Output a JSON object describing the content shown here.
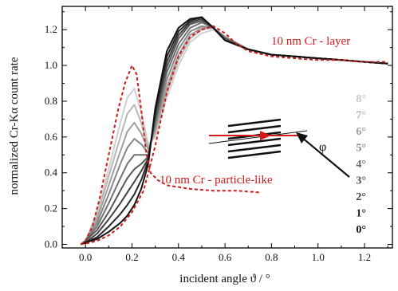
{
  "chart_data": {
    "type": "line",
    "title": "",
    "xlabel": "incident angle ϑ / °",
    "ylabel": "normalized Cr-Kα count rate",
    "xlim": [
      -0.1,
      1.32
    ],
    "ylim": [
      -0.02,
      1.33
    ],
    "xticks": [
      "0.0",
      "0.2",
      "0.4",
      "0.6",
      "0.8",
      "1.0",
      "1.2"
    ],
    "yticks": [
      "0.0",
      "0.2",
      "0.4",
      "0.6",
      "0.8",
      "1.0",
      "1.2"
    ],
    "grid": false,
    "measured_series": [
      {
        "label": "8°",
        "color": "#cfcfcf",
        "points": [
          [
            -0.02,
            0
          ],
          [
            0.0,
            0.02
          ],
          [
            0.05,
            0.18
          ],
          [
            0.1,
            0.42
          ],
          [
            0.15,
            0.68
          ],
          [
            0.18,
            0.82
          ],
          [
            0.21,
            0.87
          ],
          [
            0.24,
            0.74
          ],
          [
            0.27,
            0.56
          ],
          [
            0.3,
            0.6
          ],
          [
            0.35,
            0.82
          ],
          [
            0.4,
            1.0
          ],
          [
            0.45,
            1.13
          ],
          [
            0.5,
            1.18
          ],
          [
            0.55,
            1.2
          ],
          [
            0.6,
            1.16
          ],
          [
            0.7,
            1.09
          ],
          [
            0.8,
            1.06
          ],
          [
            0.9,
            1.05
          ],
          [
            1.0,
            1.04
          ],
          [
            1.1,
            1.03
          ],
          [
            1.2,
            1.02
          ],
          [
            1.3,
            1.01
          ]
        ]
      },
      {
        "label": "7°",
        "color": "#b8b8b8",
        "points": [
          [
            -0.02,
            0
          ],
          [
            0.0,
            0.02
          ],
          [
            0.05,
            0.16
          ],
          [
            0.1,
            0.38
          ],
          [
            0.15,
            0.6
          ],
          [
            0.18,
            0.73
          ],
          [
            0.21,
            0.78
          ],
          [
            0.24,
            0.68
          ],
          [
            0.27,
            0.54
          ],
          [
            0.3,
            0.62
          ],
          [
            0.35,
            0.85
          ],
          [
            0.4,
            1.03
          ],
          [
            0.45,
            1.15
          ],
          [
            0.5,
            1.2
          ],
          [
            0.55,
            1.21
          ],
          [
            0.6,
            1.16
          ],
          [
            0.7,
            1.09
          ],
          [
            0.8,
            1.06
          ],
          [
            0.9,
            1.05
          ],
          [
            1.0,
            1.04
          ],
          [
            1.1,
            1.03
          ],
          [
            1.2,
            1.02
          ],
          [
            1.3,
            1.01
          ]
        ]
      },
      {
        "label": "6°",
        "color": "#a0a0a0",
        "points": [
          [
            -0.02,
            0
          ],
          [
            0.0,
            0.02
          ],
          [
            0.05,
            0.14
          ],
          [
            0.1,
            0.33
          ],
          [
            0.15,
            0.52
          ],
          [
            0.18,
            0.63
          ],
          [
            0.21,
            0.68
          ],
          [
            0.24,
            0.62
          ],
          [
            0.27,
            0.53
          ],
          [
            0.3,
            0.64
          ],
          [
            0.35,
            0.88
          ],
          [
            0.4,
            1.06
          ],
          [
            0.45,
            1.17
          ],
          [
            0.5,
            1.21
          ],
          [
            0.55,
            1.21
          ],
          [
            0.6,
            1.16
          ],
          [
            0.7,
            1.09
          ],
          [
            0.8,
            1.06
          ],
          [
            0.9,
            1.05
          ],
          [
            1.0,
            1.04
          ],
          [
            1.1,
            1.03
          ],
          [
            1.2,
            1.02
          ],
          [
            1.3,
            1.01
          ]
        ]
      },
      {
        "label": "5°",
        "color": "#888888",
        "points": [
          [
            -0.02,
            0
          ],
          [
            0.0,
            0.02
          ],
          [
            0.05,
            0.12
          ],
          [
            0.1,
            0.28
          ],
          [
            0.15,
            0.45
          ],
          [
            0.18,
            0.54
          ],
          [
            0.21,
            0.59
          ],
          [
            0.24,
            0.56
          ],
          [
            0.27,
            0.51
          ],
          [
            0.3,
            0.66
          ],
          [
            0.35,
            0.92
          ],
          [
            0.4,
            1.09
          ],
          [
            0.45,
            1.19
          ],
          [
            0.5,
            1.22
          ],
          [
            0.55,
            1.21
          ],
          [
            0.6,
            1.16
          ],
          [
            0.7,
            1.09
          ],
          [
            0.8,
            1.06
          ],
          [
            0.9,
            1.05
          ],
          [
            1.0,
            1.04
          ],
          [
            1.1,
            1.03
          ],
          [
            1.2,
            1.02
          ],
          [
            1.3,
            1.01
          ]
        ]
      },
      {
        "label": "4°",
        "color": "#707070",
        "points": [
          [
            -0.02,
            0
          ],
          [
            0.0,
            0.02
          ],
          [
            0.05,
            0.1
          ],
          [
            0.1,
            0.23
          ],
          [
            0.15,
            0.37
          ],
          [
            0.18,
            0.45
          ],
          [
            0.21,
            0.5
          ],
          [
            0.24,
            0.5
          ],
          [
            0.27,
            0.5
          ],
          [
            0.3,
            0.68
          ],
          [
            0.35,
            0.96
          ],
          [
            0.4,
            1.12
          ],
          [
            0.45,
            1.21
          ],
          [
            0.5,
            1.24
          ],
          [
            0.55,
            1.21
          ],
          [
            0.6,
            1.15
          ],
          [
            0.7,
            1.09
          ],
          [
            0.8,
            1.06
          ],
          [
            0.9,
            1.05
          ],
          [
            1.0,
            1.04
          ],
          [
            1.1,
            1.03
          ],
          [
            1.2,
            1.02
          ],
          [
            1.3,
            1.01
          ]
        ]
      },
      {
        "label": "3°",
        "color": "#585858",
        "points": [
          [
            -0.02,
            0
          ],
          [
            0.0,
            0.02
          ],
          [
            0.05,
            0.08
          ],
          [
            0.1,
            0.18
          ],
          [
            0.15,
            0.3
          ],
          [
            0.18,
            0.37
          ],
          [
            0.21,
            0.42
          ],
          [
            0.24,
            0.45
          ],
          [
            0.27,
            0.49
          ],
          [
            0.3,
            0.7
          ],
          [
            0.35,
            0.99
          ],
          [
            0.4,
            1.15
          ],
          [
            0.45,
            1.23
          ],
          [
            0.5,
            1.25
          ],
          [
            0.55,
            1.21
          ],
          [
            0.6,
            1.15
          ],
          [
            0.7,
            1.09
          ],
          [
            0.8,
            1.06
          ],
          [
            0.9,
            1.05
          ],
          [
            1.0,
            1.04
          ],
          [
            1.1,
            1.03
          ],
          [
            1.2,
            1.02
          ],
          [
            1.3,
            1.01
          ]
        ]
      },
      {
        "label": "2°",
        "color": "#404040",
        "points": [
          [
            -0.02,
            0
          ],
          [
            0.0,
            0.01
          ],
          [
            0.05,
            0.06
          ],
          [
            0.1,
            0.14
          ],
          [
            0.15,
            0.23
          ],
          [
            0.18,
            0.29
          ],
          [
            0.21,
            0.35
          ],
          [
            0.24,
            0.41
          ],
          [
            0.27,
            0.48
          ],
          [
            0.3,
            0.72
          ],
          [
            0.35,
            1.02
          ],
          [
            0.4,
            1.17
          ],
          [
            0.45,
            1.24
          ],
          [
            0.5,
            1.26
          ],
          [
            0.55,
            1.21
          ],
          [
            0.6,
            1.14
          ],
          [
            0.7,
            1.09
          ],
          [
            0.8,
            1.06
          ],
          [
            0.9,
            1.05
          ],
          [
            1.0,
            1.04
          ],
          [
            1.1,
            1.03
          ],
          [
            1.2,
            1.02
          ],
          [
            1.3,
            1.01
          ]
        ]
      },
      {
        "label": "1°",
        "color": "#282828",
        "points": [
          [
            -0.02,
            0
          ],
          [
            0.0,
            0.01
          ],
          [
            0.05,
            0.04
          ],
          [
            0.1,
            0.1
          ],
          [
            0.15,
            0.17
          ],
          [
            0.18,
            0.22
          ],
          [
            0.21,
            0.28
          ],
          [
            0.24,
            0.36
          ],
          [
            0.27,
            0.47
          ],
          [
            0.3,
            0.74
          ],
          [
            0.35,
            1.05
          ],
          [
            0.4,
            1.19
          ],
          [
            0.45,
            1.25
          ],
          [
            0.5,
            1.27
          ],
          [
            0.55,
            1.21
          ],
          [
            0.6,
            1.14
          ],
          [
            0.7,
            1.09
          ],
          [
            0.8,
            1.06
          ],
          [
            0.9,
            1.05
          ],
          [
            1.0,
            1.04
          ],
          [
            1.1,
            1.03
          ],
          [
            1.2,
            1.02
          ],
          [
            1.3,
            1.01
          ]
        ]
      },
      {
        "label": "0°",
        "color": "#101010",
        "points": [
          [
            -0.02,
            0
          ],
          [
            0.0,
            0.01
          ],
          [
            0.05,
            0.03
          ],
          [
            0.1,
            0.07
          ],
          [
            0.15,
            0.12
          ],
          [
            0.18,
            0.16
          ],
          [
            0.21,
            0.22
          ],
          [
            0.24,
            0.31
          ],
          [
            0.27,
            0.45
          ],
          [
            0.3,
            0.76
          ],
          [
            0.35,
            1.08
          ],
          [
            0.4,
            1.21
          ],
          [
            0.45,
            1.26
          ],
          [
            0.5,
            1.27
          ],
          [
            0.55,
            1.21
          ],
          [
            0.6,
            1.14
          ],
          [
            0.7,
            1.09
          ],
          [
            0.8,
            1.06
          ],
          [
            0.9,
            1.05
          ],
          [
            1.0,
            1.04
          ],
          [
            1.1,
            1.03
          ],
          [
            1.2,
            1.02
          ],
          [
            1.3,
            1.01
          ]
        ]
      }
    ],
    "simulated_series": [
      {
        "label": "10 nm Cr - layer",
        "color": "#d11a1a",
        "style": "dashed",
        "points": [
          [
            -0.02,
            0
          ],
          [
            0.02,
            0.01
          ],
          [
            0.05,
            0.02
          ],
          [
            0.1,
            0.05
          ],
          [
            0.15,
            0.1
          ],
          [
            0.2,
            0.18
          ],
          [
            0.25,
            0.3
          ],
          [
            0.3,
            0.55
          ],
          [
            0.35,
            0.85
          ],
          [
            0.4,
            1.05
          ],
          [
            0.45,
            1.16
          ],
          [
            0.5,
            1.2
          ],
          [
            0.55,
            1.22
          ],
          [
            0.6,
            1.18
          ],
          [
            0.65,
            1.12
          ],
          [
            0.7,
            1.08
          ],
          [
            0.8,
            1.05
          ],
          [
            0.9,
            1.04
          ],
          [
            1.0,
            1.03
          ],
          [
            1.1,
            1.03
          ],
          [
            1.2,
            1.02
          ],
          [
            1.3,
            1.02
          ]
        ]
      },
      {
        "label": "10 nm Cr - particle-like",
        "color": "#d11a1a",
        "style": "dashed",
        "points": [
          [
            -0.02,
            0
          ],
          [
            0.0,
            0.02
          ],
          [
            0.03,
            0.1
          ],
          [
            0.06,
            0.25
          ],
          [
            0.1,
            0.5
          ],
          [
            0.14,
            0.75
          ],
          [
            0.17,
            0.9
          ],
          [
            0.2,
            1.0
          ],
          [
            0.22,
            0.95
          ],
          [
            0.24,
            0.75
          ],
          [
            0.26,
            0.52
          ],
          [
            0.28,
            0.4
          ],
          [
            0.31,
            0.36
          ],
          [
            0.35,
            0.33
          ],
          [
            0.45,
            0.31
          ],
          [
            0.55,
            0.3
          ],
          [
            0.65,
            0.3
          ],
          [
            0.75,
            0.29
          ]
        ]
      }
    ],
    "annotations": {
      "layer_label": "10 nm Cr - layer",
      "particle_label": "10 nm Cr - particle-like",
      "phi_label": "φ"
    },
    "legend": {
      "position": "right",
      "entries": [
        {
          "label": "8°",
          "color": "#c8c8c8"
        },
        {
          "label": "7°",
          "color": "#b4b4b4"
        },
        {
          "label": "6°",
          "color": "#9c9c9c"
        },
        {
          "label": "5°",
          "color": "#848484"
        },
        {
          "label": "4°",
          "color": "#6c6c6c"
        },
        {
          "label": "3°",
          "color": "#545454"
        },
        {
          "label": "2°",
          "color": "#3c3c3c"
        },
        {
          "label": "1°",
          "color": "#242424"
        },
        {
          "label": "0°",
          "color": "#0c0c0c"
        }
      ]
    }
  }
}
